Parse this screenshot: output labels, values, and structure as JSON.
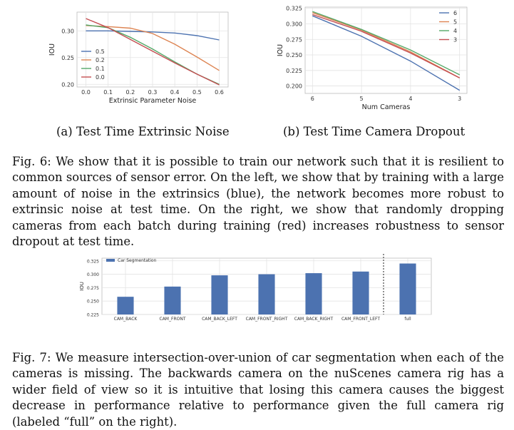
{
  "chart_data": [
    {
      "type": "line",
      "subcaption": "(a) Test Time Extrinsic Noise",
      "xlabel": "Extrinsic Parameter Noise",
      "ylabel": "IOU",
      "x": [
        0.0,
        0.1,
        0.2,
        0.3,
        0.4,
        0.5,
        0.6
      ],
      "xticks": [
        "0.0",
        "0.1",
        "0.2",
        "0.3",
        "0.4",
        "0.5",
        "0.6"
      ],
      "yticks": [
        "0.20",
        "0.25",
        "0.30"
      ],
      "xlim": [
        -0.04,
        0.64
      ],
      "ylim": [
        0.195,
        0.335
      ],
      "grid": true,
      "legend_position": "center-left",
      "series": [
        {
          "name": "0.5",
          "color": "#4c72b0",
          "values": [
            0.3,
            0.3,
            0.299,
            0.298,
            0.296,
            0.291,
            0.283
          ]
        },
        {
          "name": "0.2",
          "color": "#dd8452",
          "values": [
            0.31,
            0.308,
            0.305,
            0.295,
            0.275,
            0.251,
            0.226
          ]
        },
        {
          "name": "0.1",
          "color": "#55a868",
          "values": [
            0.311,
            0.306,
            0.288,
            0.266,
            0.242,
            0.219,
            0.2
          ]
        },
        {
          "name": "0.0",
          "color": "#c44e52",
          "values": [
            0.323,
            0.306,
            0.284,
            0.262,
            0.24,
            0.219,
            0.199
          ]
        }
      ]
    },
    {
      "type": "line",
      "subcaption": "(b) Test Time Camera Dropout",
      "xlabel": "Num Cameras",
      "ylabel": "IOU",
      "x": [
        6,
        5,
        4,
        3
      ],
      "xticks": [
        "6",
        "5",
        "4",
        "3"
      ],
      "yticks": [
        "0.200",
        "0.225",
        "0.250",
        "0.275",
        "0.300",
        "0.325"
      ],
      "xlim": [
        6.15,
        2.85
      ],
      "ylim": [
        0.188,
        0.327
      ],
      "grid": true,
      "legend_position": "top-right",
      "series": [
        {
          "name": "6",
          "color": "#4c72b0",
          "values": [
            0.313,
            0.28,
            0.24,
            0.193
          ]
        },
        {
          "name": "5",
          "color": "#dd8452",
          "values": [
            0.318,
            0.29,
            0.255,
            0.213
          ]
        },
        {
          "name": "4",
          "color": "#55a868",
          "values": [
            0.32,
            0.291,
            0.258,
            0.218
          ]
        },
        {
          "name": "3",
          "color": "#c44e52",
          "values": [
            0.315,
            0.288,
            0.253,
            0.213
          ]
        }
      ]
    },
    {
      "type": "bar",
      "ylabel": "IOU",
      "categories": [
        "CAM_BACK",
        "CAM_FRONT",
        "CAM_BACK_LEFT",
        "CAM_FRONT_RIGHT",
        "CAM_BACK_RIGHT",
        "CAM_FRONT_LEFT",
        "full"
      ],
      "values": [
        0.258,
        0.277,
        0.298,
        0.3,
        0.302,
        0.305,
        0.32
      ],
      "yticks": [
        "0.225",
        "0.250",
        "0.275",
        "0.300",
        "0.325"
      ],
      "ylim": [
        0.225,
        0.33
      ],
      "grid": true,
      "legend_position": "top-left",
      "series_name": "Car Segmentation",
      "bar_color": "#4c72b0",
      "separator_before": "full"
    }
  ],
  "captions": {
    "fig6": "Fig. 6: We show that it is possible to train our network such that it is resilient to common sources of sensor error. On the left, we show that by training with a large amount of noise in the extrinsics (blue), the network becomes more robust to extrinsic noise at test time. On the right, we show that randomly dropping cameras from each batch during training (red) increases robustness to sensor dropout at test time.",
    "fig7": "Fig. 7: We measure intersection-over-union of car segmentation when each of the cameras is missing. The backwards camera on the nuScenes camera rig has a wider field of view so it is intuitive that losing this camera causes the biggest decrease in performance relative to performance given the full camera rig (labeled “full” on the right)."
  }
}
